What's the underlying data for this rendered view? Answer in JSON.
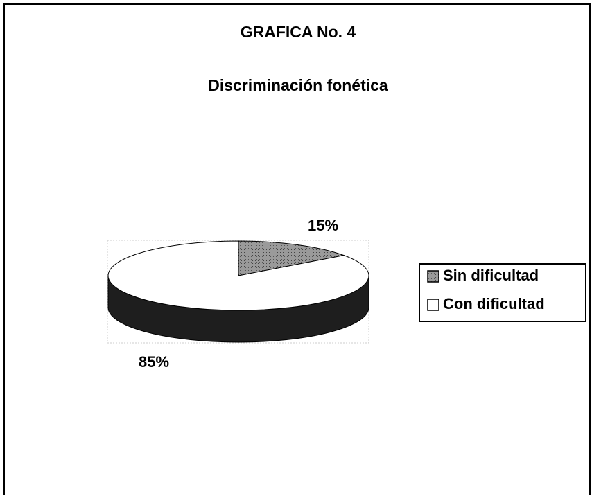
{
  "chart_data": {
    "type": "pie3d",
    "title": "GRAFICA No. 4",
    "subtitle": "Discriminación fonética",
    "categories": [
      "Sin dificultad",
      "Con dificultad"
    ],
    "values": [
      15,
      85
    ],
    "value_labels": [
      "15%",
      "85%"
    ],
    "colors": [
      "#8c8c8c",
      "#ffffff"
    ],
    "legend": "right"
  }
}
